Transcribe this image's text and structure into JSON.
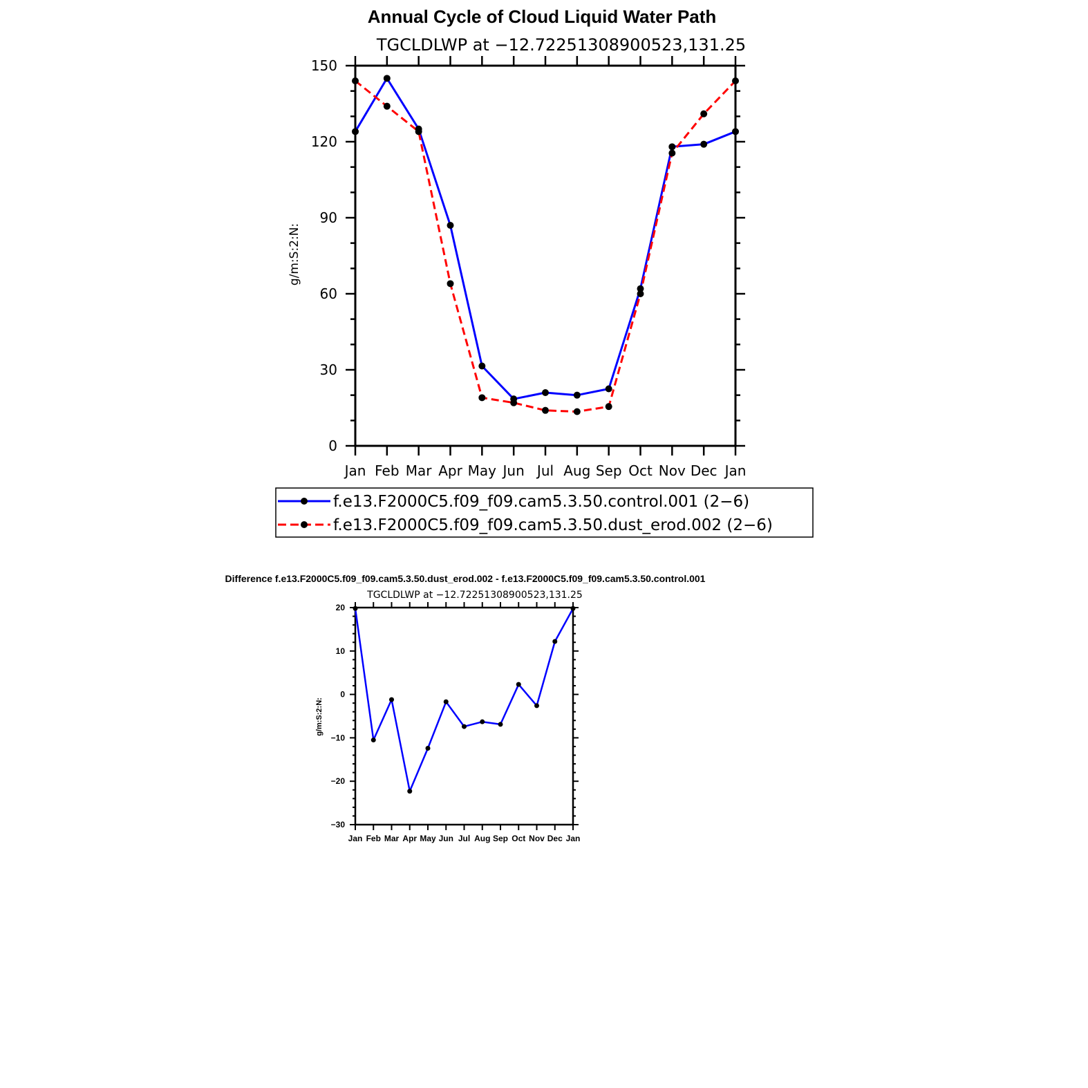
{
  "chart_data": [
    {
      "type": "line",
      "title": "Annual Cycle of Cloud Liquid Water Path",
      "subtitle": "TGCLDLWP  at  −12.72251308900523,131.25",
      "xlabel": "",
      "ylabel": "g/m:S:2:N:",
      "categories": [
        "Jan",
        "Feb",
        "Mar",
        "Apr",
        "May",
        "Jun",
        "Jul",
        "Aug",
        "Sep",
        "Oct",
        "Nov",
        "Dec",
        "Jan"
      ],
      "ylim": [
        0,
        150
      ],
      "yticks": [
        "0",
        "30",
        "60",
        "90",
        "120",
        "150"
      ],
      "legend_position": "bottom",
      "grid": false,
      "series": [
        {
          "name": "f.e13.F2000C5.f09_f09.cam5.3.50.control.001 (2−6)",
          "color": "#0000ff",
          "dash": "solid",
          "values": [
            124,
            145,
            125,
            87,
            31.5,
            18.5,
            21,
            20,
            22.5,
            62,
            118,
            119,
            124
          ]
        },
        {
          "name": "f.e13.F2000C5.f09_f09.cam5.3.50.dust_erod.002 (2−6)",
          "color": "#ff0000",
          "dash": "dashed",
          "values": [
            144,
            134,
            124,
            64,
            19,
            17,
            14,
            13.5,
            15.5,
            60,
            115.5,
            131,
            144
          ]
        }
      ]
    },
    {
      "type": "line",
      "title": "Difference f.e13.F2000C5.f09_f09.cam5.3.50.dust_erod.002 - f.e13.F2000C5.f09_f09.cam5.3.50.control.001",
      "subtitle": "TGCLDLWP  at  −12.72251308900523,131.25",
      "xlabel": "",
      "ylabel": "g/m:S:2:N:",
      "categories": [
        "Jan",
        "Feb",
        "Mar",
        "Apr",
        "May",
        "Jun",
        "Jul",
        "Aug",
        "Sep",
        "Oct",
        "Nov",
        "Dec",
        "Jan"
      ],
      "ylim": [
        -30,
        20
      ],
      "yticks": [
        "−30",
        "−20",
        "−10",
        "0",
        "10",
        "20"
      ],
      "grid": false,
      "series": [
        {
          "color": "#0000ff",
          "dash": "solid",
          "values": [
            19.8,
            -10.5,
            -1.2,
            -22.3,
            -12.4,
            -1.7,
            -7.4,
            -6.3,
            -6.9,
            2.3,
            -2.6,
            12.2,
            19.8
          ]
        }
      ]
    }
  ]
}
